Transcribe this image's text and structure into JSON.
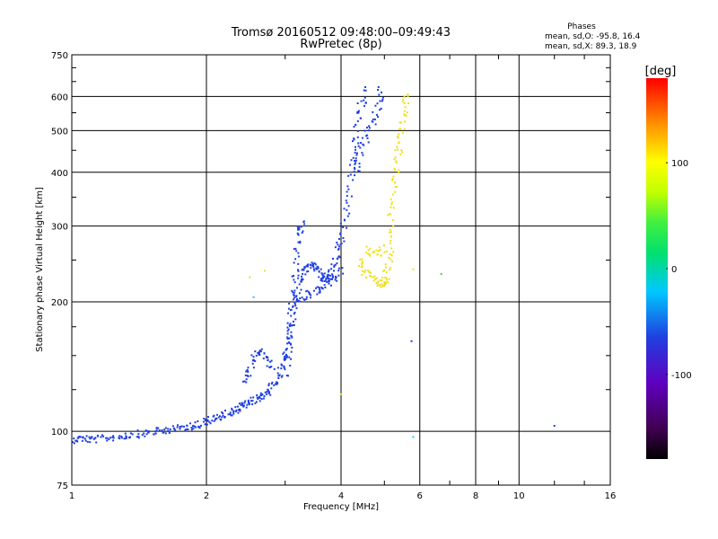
{
  "chart_data": {
    "type": "scatter",
    "title": "Tromsø 20160512 09:48:00–09:49:43",
    "subtitle": "RwPretec (8p)",
    "xlabel": "Frequency [MHz]",
    "ylabel": "Stationary phase Virtual Height [km]",
    "x_scale": "log",
    "y_scale": "log",
    "xlim": [
      1,
      16
    ],
    "ylim": [
      75,
      750
    ],
    "x_ticks": [
      1,
      2,
      4,
      6,
      8,
      10,
      16
    ],
    "y_ticks": [
      75,
      100,
      200,
      300,
      400,
      500,
      600,
      750
    ],
    "grid": true,
    "phase_stats": {
      "heading": "Phases",
      "line_o": "mean, sd,O: -95.8, 16.4",
      "line_x": "mean, sd,X: 89.3, 18.9"
    },
    "colorbar": {
      "label": "[deg]",
      "range": [
        -180,
        180
      ],
      "ticks": [
        100,
        0,
        -100
      ],
      "tick_labels": [
        "100",
        "0",
        "-100"
      ]
    },
    "series": [
      {
        "marker_color": "#1f3fe0",
        "approx_phase_deg": -100,
        "polylines": [
          [
            [
              1.0,
              96
            ],
            [
              1.05,
              97
            ],
            [
              1.1,
              96
            ],
            [
              1.2,
              97
            ],
            [
              1.3,
              98
            ],
            [
              1.4,
              99
            ],
            [
              1.5,
              100
            ],
            [
              1.6,
              101
            ],
            [
              1.7,
              102
            ],
            [
              1.8,
              103
            ],
            [
              1.9,
              104
            ],
            [
              2.0,
              106
            ],
            [
              2.1,
              108
            ],
            [
              2.2,
              110
            ],
            [
              2.3,
              112
            ],
            [
              2.4,
              115
            ],
            [
              2.5,
              117
            ],
            [
              2.6,
              120
            ],
            [
              2.7,
              123
            ],
            [
              2.8,
              128
            ],
            [
              2.9,
              136
            ],
            [
              3.0,
              150
            ],
            [
              3.05,
              165
            ],
            [
              3.1,
              185
            ],
            [
              3.15,
              205
            ],
            [
              3.2,
              225
            ],
            [
              3.3,
              240
            ],
            [
              3.4,
              245
            ],
            [
              3.5,
              240
            ],
            [
              3.6,
              230
            ],
            [
              3.7,
              225
            ],
            [
              3.8,
              235
            ],
            [
              3.9,
              255
            ],
            [
              4.0,
              280
            ],
            [
              4.1,
              330
            ],
            [
              4.2,
              400
            ],
            [
              4.3,
              480
            ],
            [
              4.4,
              560
            ],
            [
              4.5,
              630
            ]
          ],
          [
            [
              2.4,
              130
            ],
            [
              2.5,
              142
            ],
            [
              2.6,
              155
            ],
            [
              2.7,
              150
            ],
            [
              2.8,
              140
            ]
          ],
          [
            [
              3.0,
              135
            ],
            [
              3.05,
              160
            ],
            [
              3.1,
              200
            ],
            [
              3.15,
              250
            ],
            [
              3.2,
              290
            ],
            [
              3.25,
              310
            ]
          ],
          [
            [
              3.2,
              200
            ],
            [
              3.4,
              210
            ],
            [
              3.6,
              215
            ],
            [
              3.8,
              225
            ],
            [
              4.0,
              240
            ]
          ],
          [
            [
              4.3,
              400
            ],
            [
              4.4,
              450
            ],
            [
              4.6,
              500
            ],
            [
              4.8,
              560
            ],
            [
              4.9,
              640
            ]
          ]
        ]
      },
      {
        "marker_color": "#f0e020",
        "approx_phase_deg": 100,
        "polylines": [
          [
            [
              4.4,
              250
            ],
            [
              4.5,
              235
            ],
            [
              4.7,
              225
            ],
            [
              4.9,
              220
            ],
            [
              5.0,
              225
            ],
            [
              5.1,
              250
            ],
            [
              5.15,
              300
            ],
            [
              5.2,
              360
            ],
            [
              5.3,
              420
            ],
            [
              5.4,
              480
            ],
            [
              5.5,
              540
            ],
            [
              5.6,
              620
            ]
          ],
          [
            [
              4.5,
              265
            ],
            [
              4.8,
              260
            ],
            [
              5.0,
              270
            ]
          ]
        ]
      }
    ],
    "outliers": [
      {
        "x": 2.5,
        "y": 228,
        "color": "#f0e020"
      },
      {
        "x": 2.7,
        "y": 236,
        "color": "#f0e020"
      },
      {
        "x": 2.55,
        "y": 205,
        "color": "#30c0ff"
      },
      {
        "x": 4.0,
        "y": 122,
        "color": "#f0e020"
      },
      {
        "x": 5.8,
        "y": 238,
        "color": "#f0e020"
      },
      {
        "x": 6.7,
        "y": 232,
        "color": "#30e030"
      },
      {
        "x": 5.75,
        "y": 162,
        "color": "#1f3fe0"
      },
      {
        "x": 5.8,
        "y": 97,
        "color": "#30c0ff"
      },
      {
        "x": 12.0,
        "y": 103,
        "color": "#1f3fe0"
      }
    ]
  }
}
